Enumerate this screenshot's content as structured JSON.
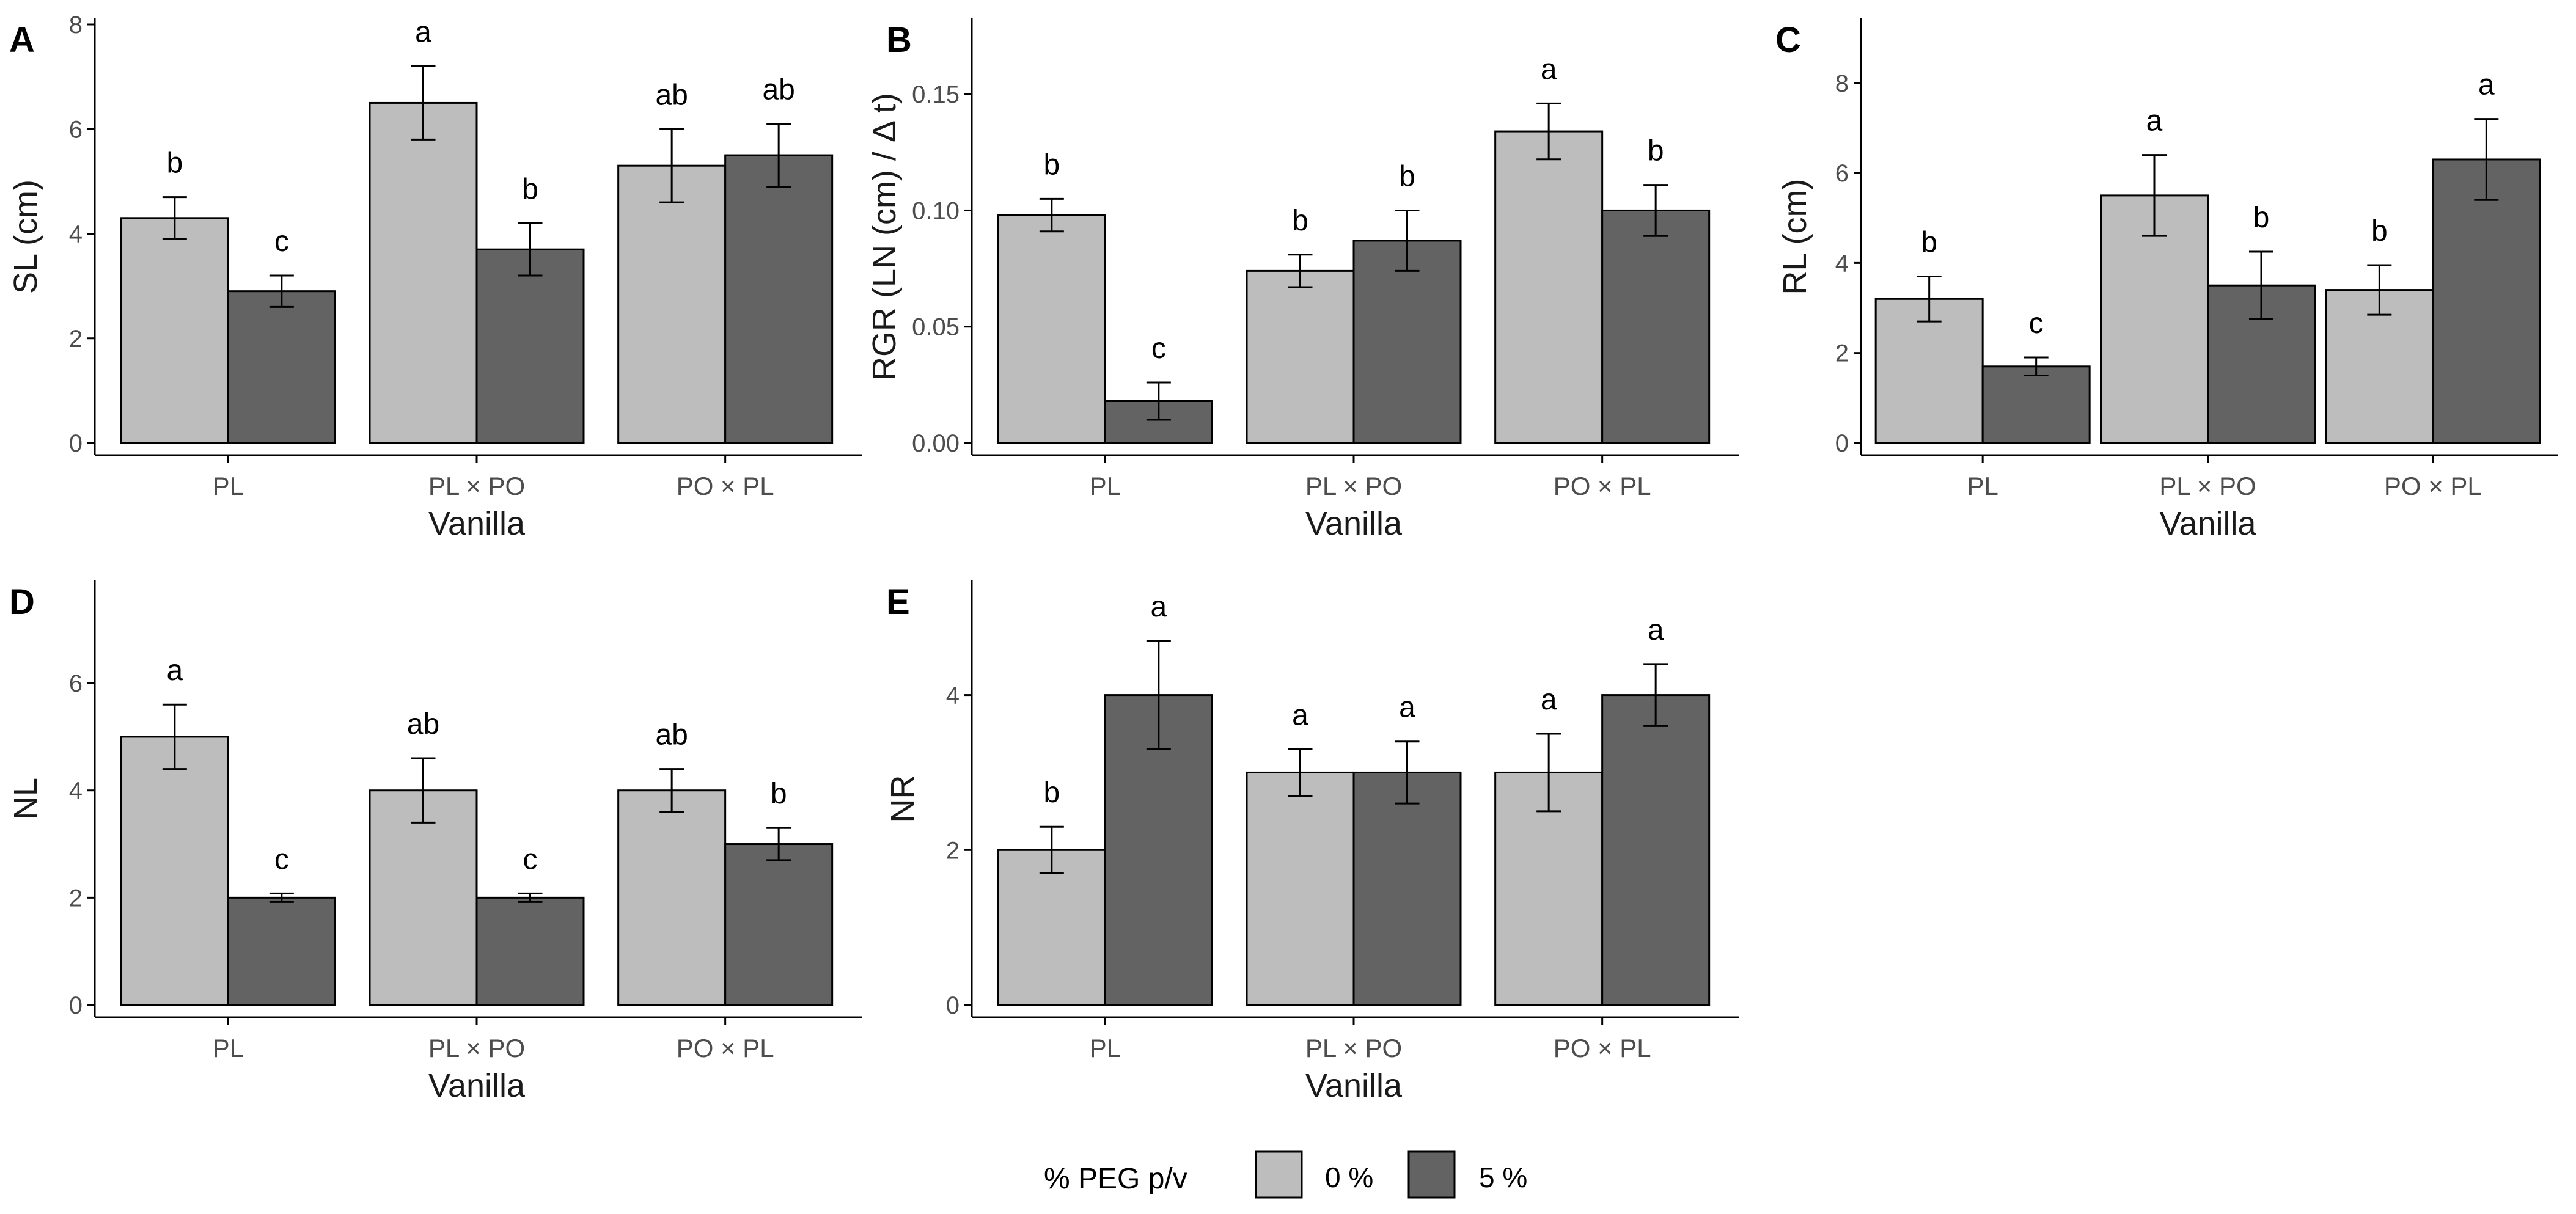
{
  "colors": {
    "peg0": "#bdbdbd",
    "peg5": "#636363"
  },
  "legend": {
    "title": "% PEG p/v",
    "labels": [
      "0 %",
      "5 %"
    ]
  },
  "chart_data": [
    {
      "panel": "A",
      "type": "bar",
      "categories": [
        "PL",
        "PL × PO",
        "PO × PL"
      ],
      "xlabel": "Vanilla",
      "ylabel": "SL (cm)",
      "ylim": [
        0,
        8
      ],
      "yticks": [
        "0",
        "2",
        "4",
        "6",
        "8"
      ],
      "ytick_values": [
        0,
        2,
        4,
        6,
        8
      ],
      "series": [
        {
          "name": "0 %",
          "values": [
            4.3,
            6.5,
            5.3
          ],
          "errors": [
            0.4,
            0.7,
            0.7
          ],
          "letters": [
            "b",
            "a",
            "ab"
          ]
        },
        {
          "name": "5 %",
          "values": [
            2.9,
            3.7,
            5.5
          ],
          "errors": [
            0.3,
            0.5,
            0.6
          ],
          "letters": [
            "c",
            "b",
            "ab"
          ]
        }
      ]
    },
    {
      "panel": "B",
      "type": "bar",
      "categories": [
        "PL",
        "PL × PO",
        "PO × PL"
      ],
      "xlabel": "Vanilla",
      "ylabel": "RGR (LN (cm) / Δ t)",
      "ylim": [
        0,
        0.18
      ],
      "yticks": [
        "0.00",
        "0.05",
        "0.10",
        "0.15"
      ],
      "ytick_values": [
        0,
        0.05,
        0.1,
        0.15
      ],
      "series": [
        {
          "name": "0 %",
          "values": [
            0.098,
            0.074,
            0.134
          ],
          "errors": [
            0.007,
            0.007,
            0.012
          ],
          "letters": [
            "b",
            "b",
            "a"
          ]
        },
        {
          "name": "5 %",
          "values": [
            0.018,
            0.087,
            0.1
          ],
          "errors": [
            0.008,
            0.013,
            0.011
          ],
          "letters": [
            "c",
            "b",
            "b"
          ]
        }
      ]
    },
    {
      "panel": "C",
      "type": "bar",
      "categories": [
        "PL",
        "PL × PO",
        "PO × PL"
      ],
      "xlabel": "Vanilla",
      "ylabel": "RL (cm)",
      "ylim": [
        0,
        9.3
      ],
      "yticks": [
        "0",
        "2",
        "4",
        "6",
        "8"
      ],
      "ytick_values": [
        0,
        2,
        4,
        6,
        8
      ],
      "series": [
        {
          "name": "0 %",
          "values": [
            3.2,
            5.5,
            3.4
          ],
          "errors": [
            0.5,
            0.9,
            0.55
          ],
          "letters": [
            "b",
            "a",
            "b"
          ]
        },
        {
          "name": "5 %",
          "values": [
            1.7,
            3.5,
            6.3
          ],
          "errors": [
            0.2,
            0.75,
            0.9
          ],
          "letters": [
            "c",
            "b",
            "a"
          ]
        }
      ]
    },
    {
      "panel": "D",
      "type": "bar",
      "categories": [
        "PL",
        "PL × PO",
        "PO × PL"
      ],
      "xlabel": "Vanilla",
      "ylabel": "NL",
      "ylim": [
        0,
        7.8
      ],
      "yticks": [
        "0",
        "2",
        "4",
        "6"
      ],
      "ytick_values": [
        0,
        2,
        4,
        6
      ],
      "series": [
        {
          "name": "0 %",
          "values": [
            5,
            4,
            4
          ],
          "errors": [
            0.6,
            0.6,
            0.4
          ],
          "letters": [
            "a",
            "ab",
            "ab"
          ]
        },
        {
          "name": "5 %",
          "values": [
            2,
            2,
            3
          ],
          "errors": [
            0.08,
            0.08,
            0.3
          ],
          "letters": [
            "c",
            "c",
            "b"
          ]
        }
      ]
    },
    {
      "panel": "E",
      "type": "bar",
      "categories": [
        "PL",
        "PL × PO",
        "PO × PL"
      ],
      "xlabel": "Vanilla",
      "ylabel": "NR",
      "ylim": [
        0,
        5.4
      ],
      "yticks": [
        "0",
        "2",
        "4"
      ],
      "ytick_values": [
        0,
        2,
        4
      ],
      "series": [
        {
          "name": "0 %",
          "values": [
            2,
            3,
            3
          ],
          "errors": [
            0.3,
            0.3,
            0.5
          ],
          "letters": [
            "b",
            "a",
            "a"
          ]
        },
        {
          "name": "5 %",
          "values": [
            4,
            3,
            4
          ],
          "errors": [
            0.7,
            0.4,
            0.4
          ],
          "letters": [
            "a",
            "a",
            "a"
          ]
        }
      ]
    }
  ]
}
